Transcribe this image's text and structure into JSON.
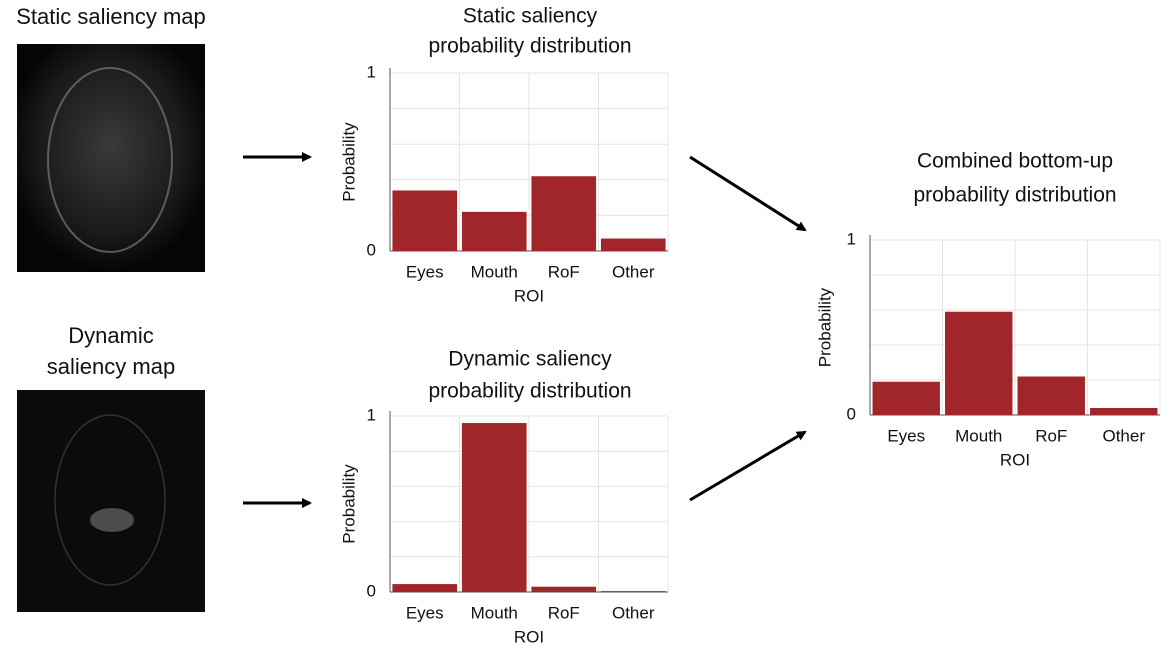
{
  "images": [
    {
      "label": [
        "Static saliency map"
      ]
    },
    {
      "label": [
        "Dynamic",
        "saliency map"
      ]
    }
  ],
  "chart_data": [
    {
      "type": "bar",
      "title": [
        "Static saliency",
        "probability distribution"
      ],
      "categories": [
        "Eyes",
        "Mouth",
        "RoF",
        "Other"
      ],
      "values": [
        0.34,
        0.22,
        0.42,
        0.07
      ],
      "color": "#a0262a",
      "xlabel": "ROI",
      "ylabel": "Probability",
      "ylim": [
        0,
        1
      ],
      "yticks": [
        0,
        1
      ],
      "minor_yticks": [
        0.2,
        0.4,
        0.6,
        0.8
      ],
      "grid": true
    },
    {
      "type": "bar",
      "title": [
        "Dynamic saliency",
        "probability distribution"
      ],
      "categories": [
        "Eyes",
        "Mouth",
        "RoF",
        "Other"
      ],
      "values": [
        0.045,
        0.96,
        0.03,
        0.005
      ],
      "color": "#a0262a",
      "xlabel": "ROI",
      "ylabel": "Probability",
      "ylim": [
        0,
        1
      ],
      "yticks": [
        0,
        1
      ],
      "minor_yticks": [
        0.2,
        0.4,
        0.6,
        0.8
      ],
      "grid": true
    },
    {
      "type": "bar",
      "title": [
        "Combined bottom-up",
        "probability distribution"
      ],
      "categories": [
        "Eyes",
        "Mouth",
        "RoF",
        "Other"
      ],
      "values": [
        0.19,
        0.59,
        0.22,
        0.04
      ],
      "color": "#a0262a",
      "xlabel": "ROI",
      "ylabel": "Probability",
      "ylim": [
        0,
        1
      ],
      "yticks": [
        0,
        1
      ],
      "minor_yticks": [
        0.2,
        0.4,
        0.6,
        0.8
      ],
      "grid": true
    }
  ]
}
